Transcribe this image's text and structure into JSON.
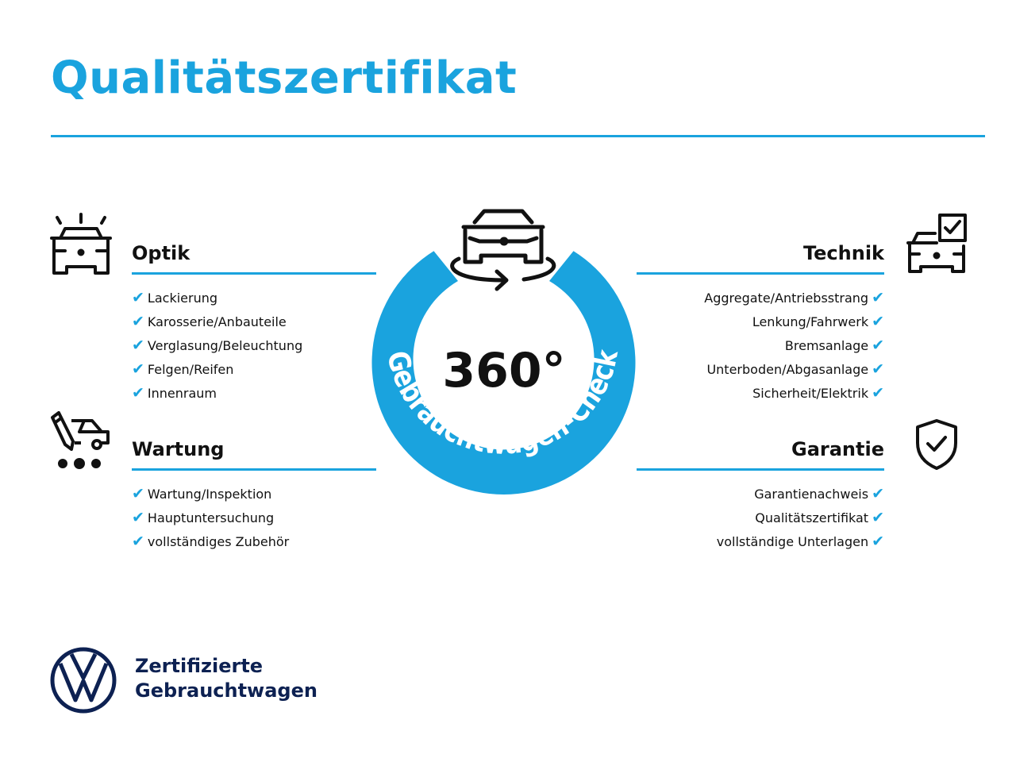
{
  "title": "Qualitätszertifikat",
  "center": {
    "degrees": "360°",
    "ring_text": "Gebrauchtwagen-Check"
  },
  "sections": {
    "optik": {
      "title": "Optik",
      "icon": "car-lights-icon",
      "items": [
        "Lackierung",
        "Karosserie/Anbauteile",
        "Verglasung/Beleuchtung",
        "Felgen/Reifen",
        "Innenraum"
      ]
    },
    "wartung": {
      "title": "Wartung",
      "icon": "service-pen-car-icon",
      "items": [
        "Wartung/Inspektion",
        "Hauptuntersuchung",
        "vollständiges Zubehör"
      ]
    },
    "technik": {
      "title": "Technik",
      "icon": "car-checkbox-icon",
      "items": [
        "Aggregate/Antriebsstrang",
        "Lenkung/Fahrwerk",
        "Bremsanlage",
        "Unterboden/Abgasanlage",
        "Sicherheit/Elektrik"
      ]
    },
    "garantie": {
      "title": "Garantie",
      "icon": "shield-check-icon",
      "items": [
        "Garantienachweis",
        "Qualitätszertifikat",
        "vollständige Unterlagen"
      ]
    }
  },
  "check_mark": "✔",
  "brand": {
    "line1": "Zertifizierte",
    "line2": "Gebrauchtwagen",
    "logo": "VW"
  },
  "colors": {
    "accent": "#1aa3de",
    "brand_navy": "#0d2152",
    "text": "#111111"
  }
}
